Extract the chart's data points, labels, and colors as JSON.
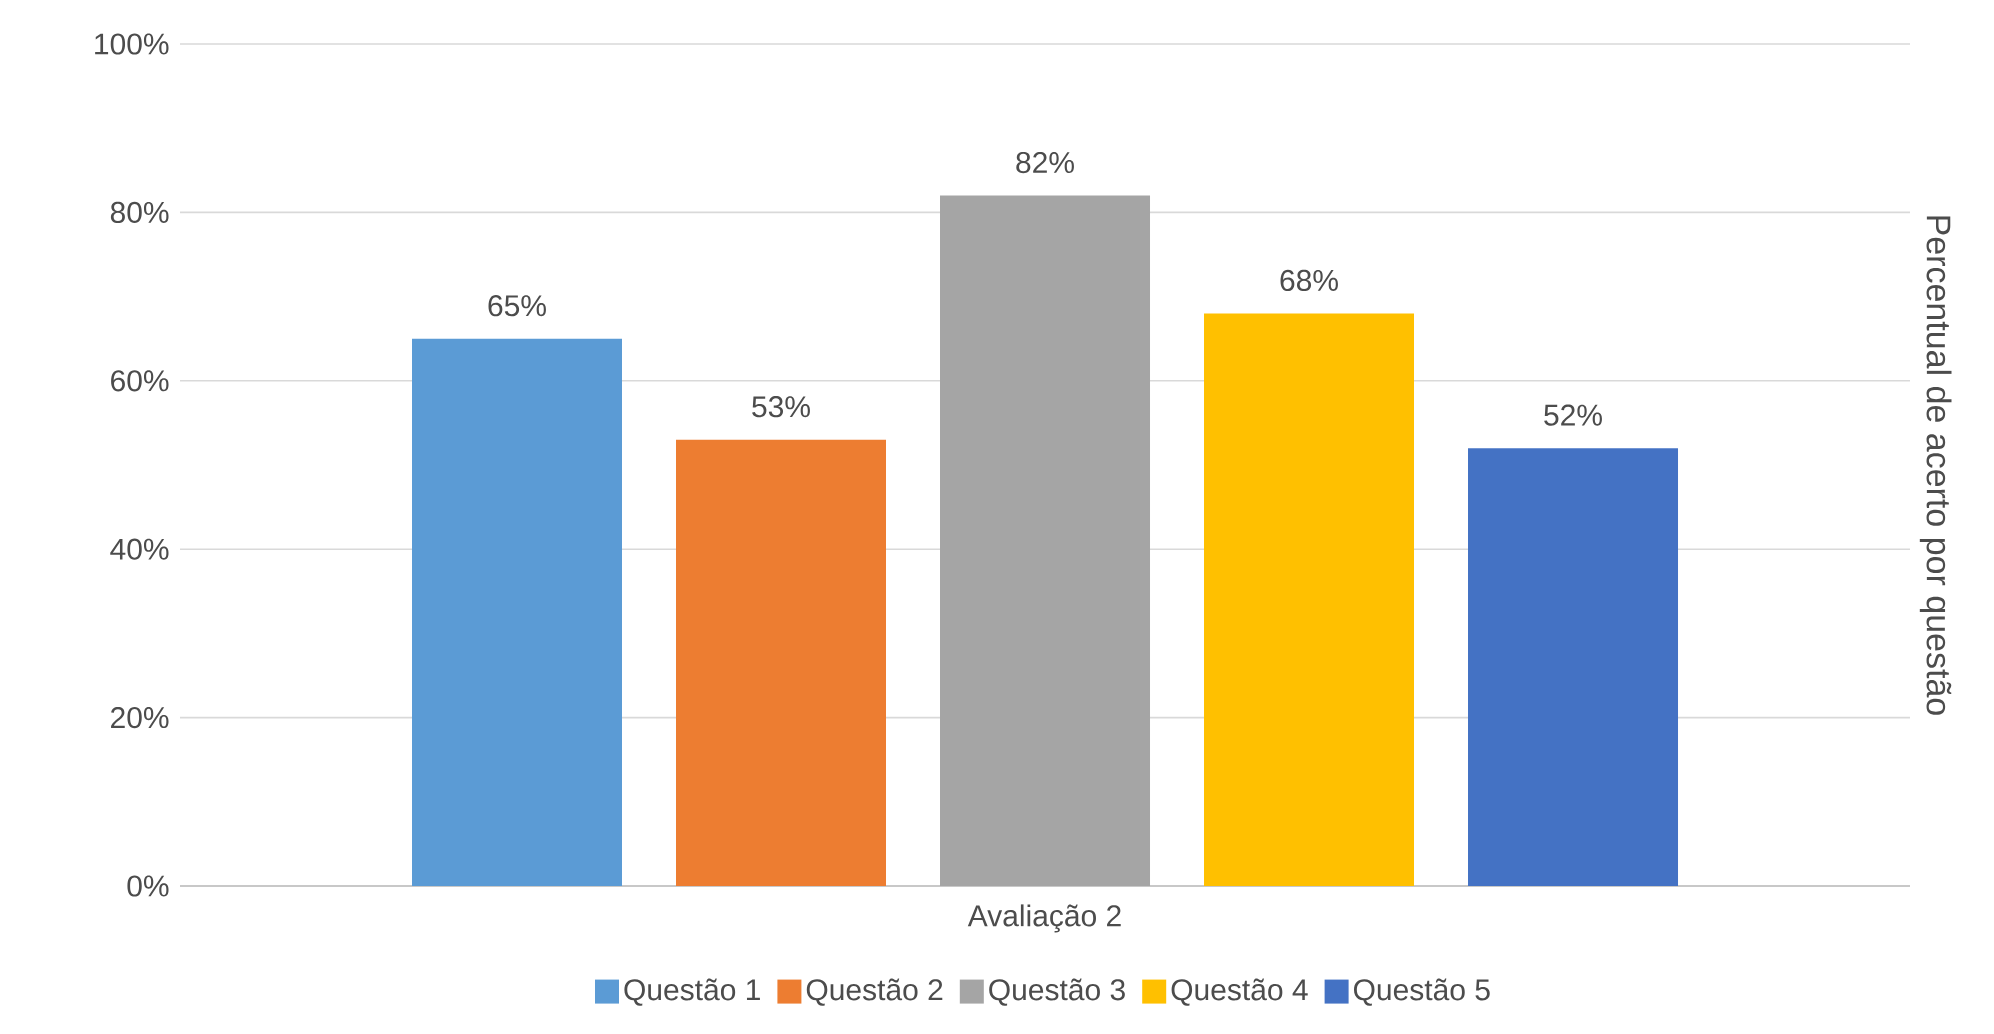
{
  "chart_data": {
    "type": "bar",
    "categories": [
      "Avaliação 2"
    ],
    "ylabel": "Percentual de acerto por questão",
    "series": [
      {
        "name": "Questão 1",
        "color": "#5b9bd5",
        "values": [
          65
        ],
        "value_labels": [
          "65%"
        ]
      },
      {
        "name": "Questão  2",
        "color": "#ed7d31",
        "values": [
          53
        ],
        "value_labels": [
          "53%"
        ]
      },
      {
        "name": "Questão 3",
        "color": "#a5a5a5",
        "values": [
          82
        ],
        "value_labels": [
          "82%"
        ]
      },
      {
        "name": "Questão 4",
        "color": "#ffc000",
        "values": [
          68
        ],
        "value_labels": [
          "68%"
        ]
      },
      {
        "name": "Questão  5",
        "color": "#4472c4",
        "values": [
          52
        ],
        "value_labels": [
          "52%"
        ]
      }
    ],
    "ylim": [
      0,
      100
    ],
    "yticks": [
      {
        "value": 0,
        "label": "0%"
      },
      {
        "value": 20,
        "label": "20%"
      },
      {
        "value": 40,
        "label": "40%"
      },
      {
        "value": 60,
        "label": "60%"
      },
      {
        "value": 80,
        "label": "80%"
      },
      {
        "value": 100,
        "label": "100%"
      }
    ],
    "grid": "y",
    "legend": "bottom"
  }
}
